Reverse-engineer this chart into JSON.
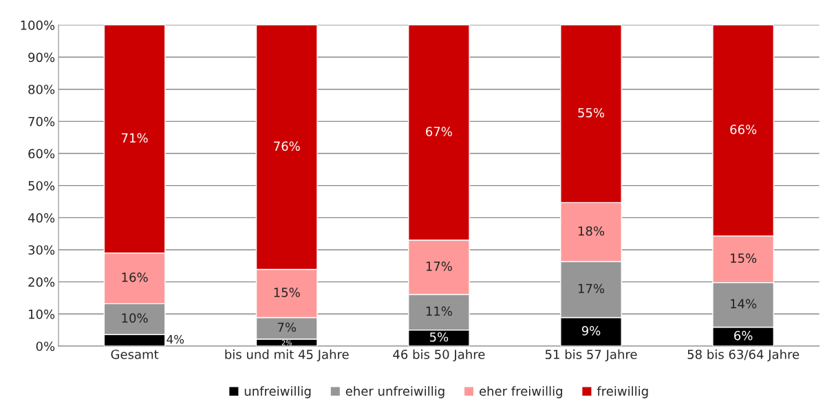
{
  "chart_data": {
    "type": "bar",
    "stacked": true,
    "categories": [
      "Gesamt",
      "bis und mit 45 Jahre",
      "46 bis 50 Jahre",
      "51 bis 57 Jahre",
      "58 bis 63/64 Jahre"
    ],
    "series": [
      {
        "name": "unfreiwillig",
        "color": "#000000",
        "values": [
          3.6,
          2.2,
          5.0,
          8.9,
          5.9
        ],
        "value_labels": [
          "4%",
          "2%",
          "5%",
          "9%",
          "6%"
        ]
      },
      {
        "name": "eher unfreiwillig",
        "color": "#969696",
        "values": [
          9.6,
          6.7,
          11.1,
          17.4,
          13.9
        ],
        "value_labels": [
          "10%",
          "7%",
          "11%",
          "17%",
          "14%"
        ]
      },
      {
        "name": "eher freiwillig",
        "color": "#ff9999",
        "values": [
          15.8,
          15.0,
          16.9,
          18.4,
          14.5
        ],
        "value_labels": [
          "16%",
          "15%",
          "17%",
          "18%",
          "15%"
        ]
      },
      {
        "name": "freiwillig",
        "color": "#cc0000",
        "values": [
          71.0,
          76.1,
          67.0,
          55.3,
          65.7
        ],
        "value_labels": [
          "71%",
          "76%",
          "67%",
          "55%",
          "66%"
        ]
      }
    ],
    "ylim": [
      0,
      100
    ],
    "yticks": [
      {
        "value": 0,
        "label": "0%"
      },
      {
        "value": 10,
        "label": "10%"
      },
      {
        "value": 20,
        "label": "20%"
      },
      {
        "value": 30,
        "label": "30%"
      },
      {
        "value": 40,
        "label": "40%"
      },
      {
        "value": 50,
        "label": "50%"
      },
      {
        "value": 60,
        "label": "60%"
      },
      {
        "value": 70,
        "label": "70%"
      },
      {
        "value": 80,
        "label": "80%"
      },
      {
        "value": 90,
        "label": "90%"
      },
      {
        "value": 100,
        "label": "100%"
      }
    ],
    "grid": "y",
    "legend": "bottom"
  }
}
